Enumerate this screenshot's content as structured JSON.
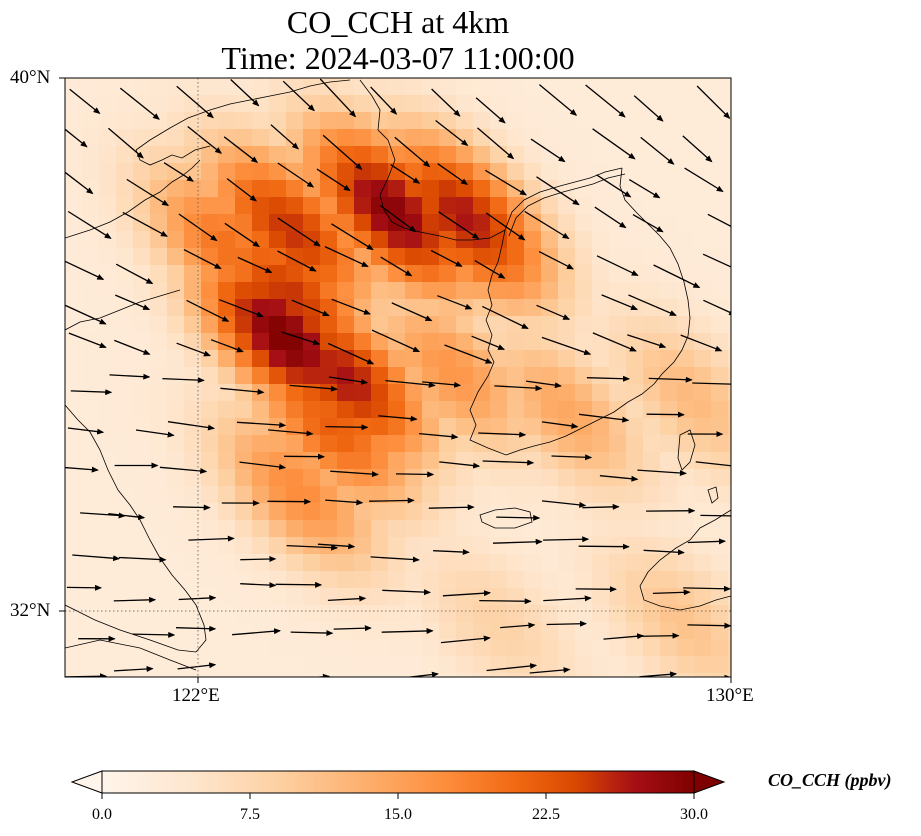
{
  "title": {
    "line1": "CO_CCH at 4km",
    "line2": "Time: 2024-03-07 11:00:00"
  },
  "map": {
    "extent": {
      "lon_min": 120,
      "lon_max": 130,
      "lat_min": 31,
      "lat_max": 40
    },
    "x_ticks": [
      {
        "lon": 122,
        "label": "122°E"
      },
      {
        "lon": 130,
        "label": "130°E"
      }
    ],
    "y_ticks": [
      {
        "lat": 40,
        "label": "40°N"
      },
      {
        "lat": 32,
        "label": "32°N"
      }
    ],
    "gridlines": "dotted"
  },
  "colorbar": {
    "label": "CO_CCH (ppbv)",
    "ticks": [
      "0.0",
      "7.5",
      "15.0",
      "22.5",
      "30.0"
    ],
    "min": 0,
    "max": 30,
    "extend": "both",
    "colors": [
      "#fff5eb",
      "#fee6ce",
      "#fdd0a2",
      "#fdae6b",
      "#fd8d3c",
      "#f16913",
      "#d94801",
      "#a50f15",
      "#7f0000"
    ]
  },
  "plumes": [
    {
      "lon": 124.9,
      "lat": 38.0,
      "value": 29
    },
    {
      "lon": 126.0,
      "lat": 37.9,
      "value": 26
    },
    {
      "lon": 123.4,
      "lat": 37.7,
      "value": 24
    },
    {
      "lon": 122.5,
      "lat": 37.4,
      "value": 18
    },
    {
      "lon": 123.3,
      "lat": 36.1,
      "value": 30
    },
    {
      "lon": 124.2,
      "lat": 35.5,
      "value": 26
    },
    {
      "lon": 123.4,
      "lat": 36.7,
      "value": 24
    },
    {
      "lon": 124.0,
      "lat": 34.8,
      "value": 20
    },
    {
      "lon": 123.5,
      "lat": 33.8,
      "value": 15
    },
    {
      "lon": 125.8,
      "lat": 35.6,
      "value": 14
    },
    {
      "lon": 127.5,
      "lat": 35.0,
      "value": 12
    },
    {
      "lon": 129.4,
      "lat": 35.2,
      "value": 10
    },
    {
      "lon": 126.5,
      "lat": 31.8,
      "value": 7
    },
    {
      "lon": 129.3,
      "lat": 31.8,
      "value": 9
    }
  ]
}
